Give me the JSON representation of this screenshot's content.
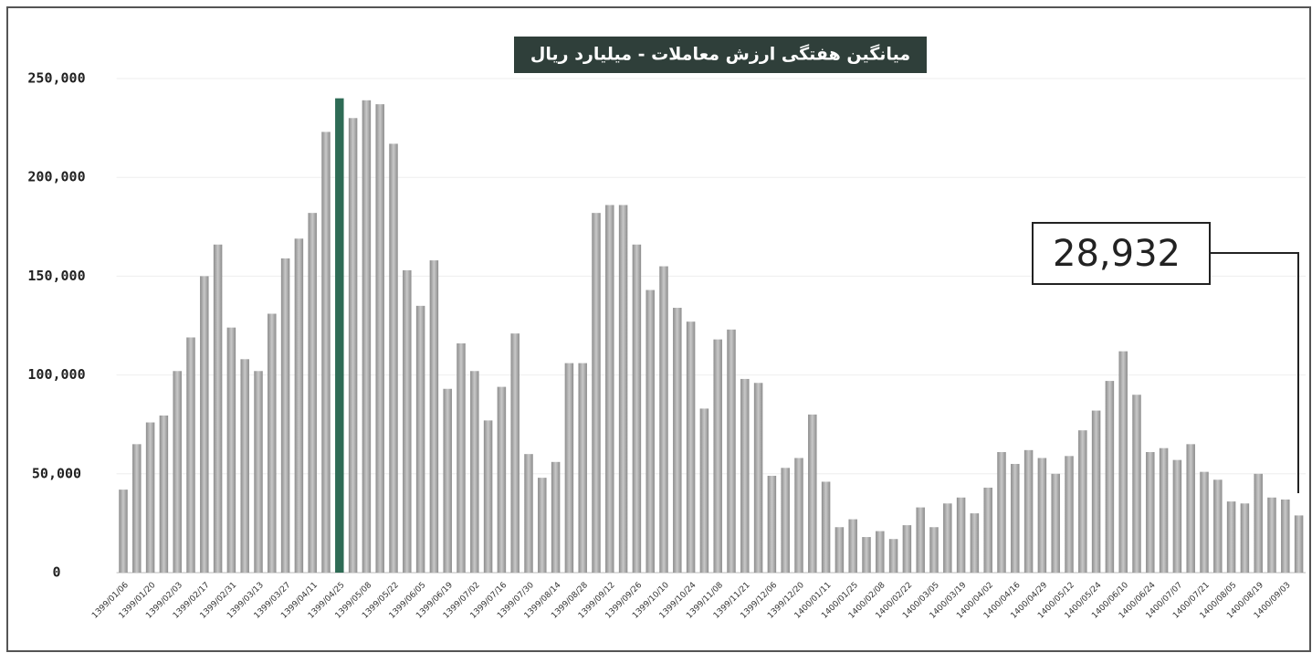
{
  "chart_data": {
    "type": "bar",
    "title": "میانگین هفتگی ارزش معاملات - میلیارد ریال",
    "annotation": "28,932",
    "categories": [
      "1399/01/06",
      null,
      "1399/01/20",
      null,
      "1399/02/03",
      null,
      "1399/02/17",
      null,
      "1399/02/31",
      null,
      "1399/03/13",
      null,
      "1399/03/27",
      null,
      "1399/04/11",
      null,
      "1399/04/25",
      null,
      "1399/05/08",
      null,
      "1399/05/22",
      null,
      "1399/06/05",
      null,
      "1399/06/19",
      null,
      "1399/07/02",
      null,
      "1399/07/16",
      null,
      "1399/07/30",
      null,
      "1399/08/14",
      null,
      "1399/08/28",
      null,
      "1399/09/12",
      null,
      "1399/09/26",
      null,
      "1399/10/10",
      null,
      "1399/10/24",
      null,
      "1399/11/08",
      null,
      "1399/11/21",
      null,
      "1399/12/06",
      null,
      "1399/12/20",
      null,
      "1400/01/11",
      null,
      "1400/01/25",
      null,
      "1400/02/08",
      null,
      "1400/02/22",
      null,
      "1400/03/05",
      null,
      "1400/03/19",
      null,
      "1400/04/02",
      null,
      "1400/04/16",
      null,
      "1400/04/29",
      null,
      "1400/05/12",
      null,
      "1400/05/24",
      null,
      "1400/06/10",
      null,
      "1400/06/24",
      null,
      "1400/07/07",
      null,
      "1400/07/21",
      null,
      "1400/08/05",
      null,
      "1400/08/19",
      null,
      "1400/09/03",
      null
    ],
    "values": [
      42000,
      65000,
      76000,
      79500,
      102000,
      119000,
      150000,
      166000,
      124000,
      108000,
      102000,
      131000,
      159000,
      169000,
      182000,
      223000,
      240000,
      230000,
      239000,
      237000,
      217000,
      153000,
      135000,
      158000,
      93000,
      116000,
      102000,
      77000,
      94000,
      121000,
      60000,
      48000,
      56000,
      106000,
      106000,
      182000,
      186000,
      186000,
      166000,
      143000,
      155000,
      134000,
      127000,
      83000,
      118000,
      123000,
      98000,
      96000,
      49000,
      53000,
      58000,
      80000,
      46000,
      23000,
      27000,
      18000,
      21000,
      17000,
      24000,
      33000,
      23000,
      35000,
      38000,
      30000,
      43000,
      61000,
      55000,
      62000,
      58000,
      50000,
      59000,
      72000,
      82000,
      97000,
      112000,
      90000,
      61000,
      63000,
      57000,
      65000,
      51000,
      47000,
      36000,
      35000,
      50000,
      38000,
      37000,
      28932
    ],
    "color": "#a6a6a6",
    "highlight": "1399/04/25",
    "highlight_color": "#2e6b55",
    "ylim": [
      0,
      250000
    ],
    "yticks": [
      0,
      {
        "value": 50000,
        "label": "50,000"
      },
      {
        "value": 100000,
        "label": "100,000"
      },
      {
        "value": 150000,
        "label": "150,000"
      },
      {
        "value": 200000,
        "label": "200,000"
      },
      {
        "value": 250000,
        "label": "250,000"
      }
    ],
    "grid": true
  }
}
